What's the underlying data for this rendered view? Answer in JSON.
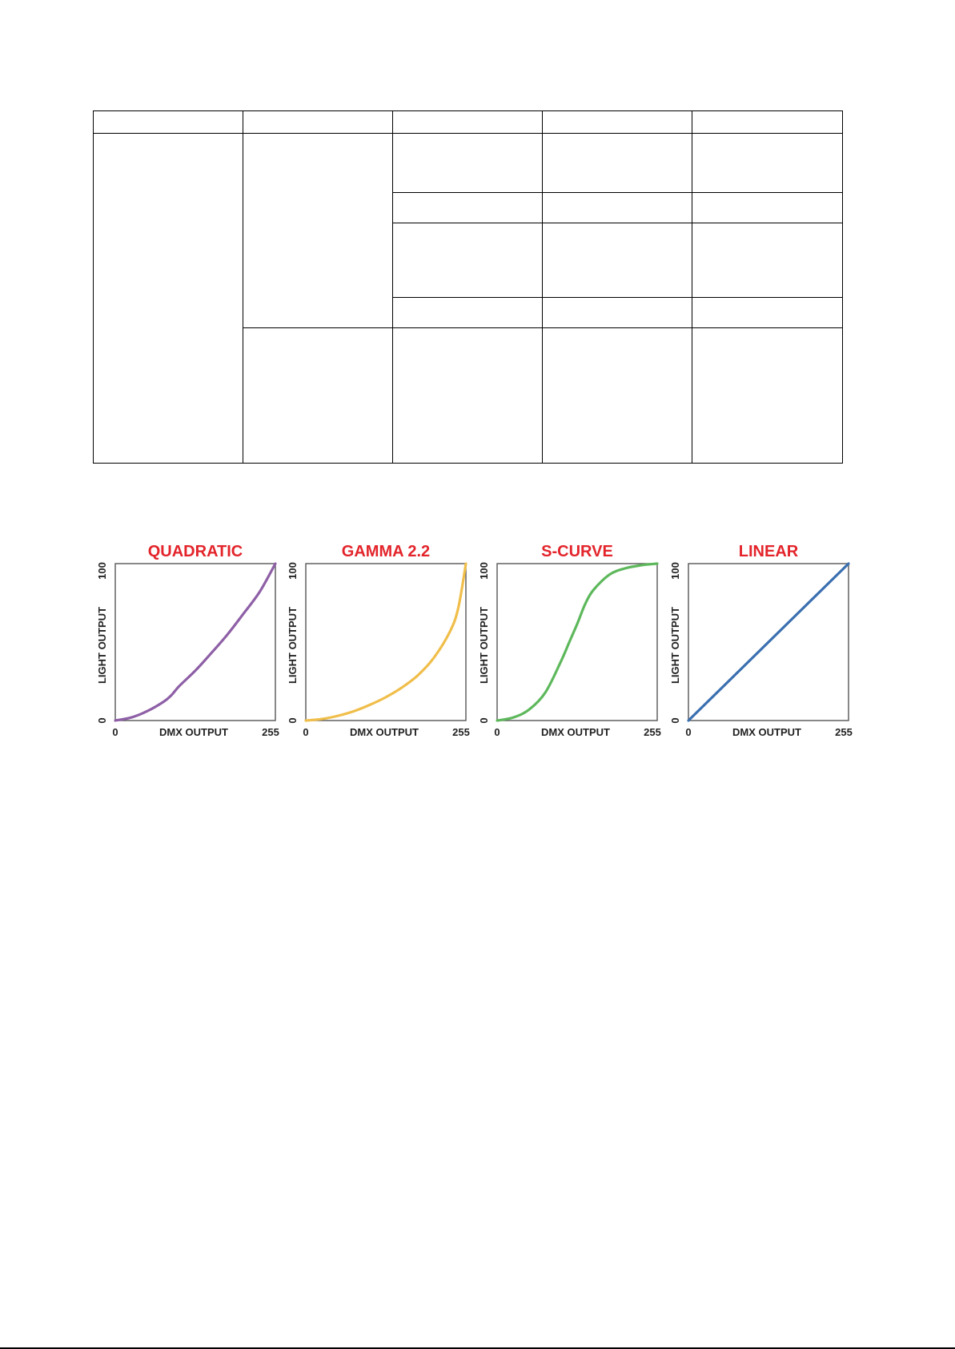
{
  "table": {
    "rows": [
      [
        "",
        "",
        "",
        "",
        ""
      ],
      [
        "",
        "",
        "",
        "",
        ""
      ],
      [
        "",
        "",
        ""
      ],
      [
        "",
        "",
        ""
      ],
      [
        "",
        "",
        ""
      ],
      [
        "",
        "",
        "",
        ""
      ]
    ]
  },
  "chart_data": [
    {
      "type": "line",
      "title": "QUADRATIC",
      "xlabel": "DMX OUTPUT",
      "ylabel": "LIGHT OUTPUT",
      "xlim": [
        0,
        255
      ],
      "ylim": [
        0,
        100
      ],
      "x_ticks": [
        "0",
        "255"
      ],
      "y_ticks": [
        "0",
        "100"
      ],
      "grid": false,
      "color": "#8E5FA6",
      "title_color": "#E3242B",
      "x": [
        0,
        26,
        51,
        77,
        89,
        102,
        128,
        153,
        179,
        204,
        230,
        255
      ],
      "y": [
        0,
        2,
        6,
        12,
        16,
        22,
        32,
        43,
        55,
        68,
        82,
        100
      ]
    },
    {
      "type": "line",
      "title": "GAMMA 2.2",
      "xlabel": "DMX OUTPUT",
      "ylabel": "LIGHT OUTPUT",
      "xlim": [
        0,
        255
      ],
      "ylim": [
        0,
        100
      ],
      "x_ticks": [
        "0",
        "255"
      ],
      "y_ticks": [
        "0",
        "100"
      ],
      "grid": false,
      "color": "#F0BE4A",
      "title_color": "#E3242B",
      "x": [
        0,
        26,
        51,
        77,
        102,
        128,
        153,
        179,
        204,
        230,
        243,
        255
      ],
      "y": [
        0,
        1,
        3,
        6,
        10,
        15,
        21,
        29,
        40,
        57,
        72,
        100
      ]
    },
    {
      "type": "line",
      "title": "S-CURVE",
      "xlabel": "DMX OUTPUT",
      "ylabel": "LIGHT OUTPUT",
      "xlim": [
        0,
        255
      ],
      "ylim": [
        0,
        100
      ],
      "x_ticks": [
        "0",
        "255"
      ],
      "y_ticks": [
        "0",
        "100"
      ],
      "grid": false,
      "color": "#5DB85B",
      "title_color": "#E3242B",
      "x": [
        0,
        26,
        51,
        77,
        102,
        115,
        128,
        140,
        153,
        179,
        204,
        230,
        255
      ],
      "y": [
        0,
        2,
        7,
        18,
        38,
        50,
        62,
        74,
        83,
        93,
        97,
        99,
        100
      ]
    },
    {
      "type": "line",
      "title": "LINEAR",
      "xlabel": "DMX OUTPUT",
      "ylabel": "LIGHT OUTPUT",
      "xlim": [
        0,
        255
      ],
      "ylim": [
        0,
        100
      ],
      "x_ticks": [
        "0",
        "255"
      ],
      "y_ticks": [
        "0",
        "100"
      ],
      "grid": false,
      "color": "#3A6FB0",
      "title_color": "#E3242B",
      "x": [
        0,
        255
      ],
      "y": [
        0,
        100
      ]
    }
  ]
}
